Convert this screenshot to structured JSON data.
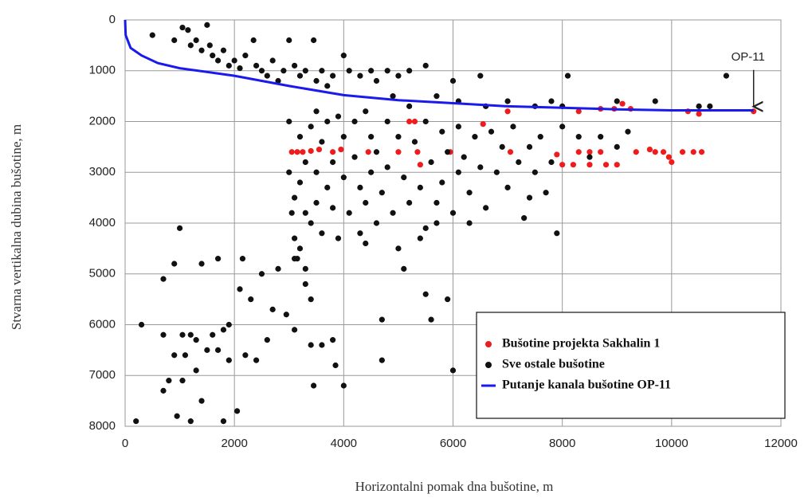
{
  "chart_data": {
    "type": "scatter",
    "xlabel": "Horizontalni pomak dna bušotine, m",
    "ylabel": "Stvarna vertikalna dubina bušotine, m",
    "xlim": [
      0,
      12000
    ],
    "xticks": [
      0,
      2000,
      4000,
      6000,
      8000,
      10000,
      12000
    ],
    "ylim": [
      8000,
      0
    ],
    "yticks": [
      0,
      1000,
      2000,
      3000,
      4000,
      5000,
      6000,
      7000,
      8000
    ],
    "grid": true,
    "legend": "lower right",
    "annotation": {
      "text": "OP-11",
      "x": 11500,
      "y": 1800
    },
    "series": [
      {
        "name": "Bušotine projekta Sakhalin 1",
        "type": "scatter",
        "color": "#ee1c1c",
        "x": [
          3050,
          3150,
          3250,
          3400,
          3550,
          3800,
          3950,
          4450,
          5000,
          5200,
          5300,
          5350,
          5400,
          5950,
          6550,
          7000,
          7050,
          7900,
          8000,
          8200,
          8300,
          8300,
          8500,
          8500,
          8700,
          8700,
          8800,
          8950,
          9000,
          9100,
          9250,
          9350,
          9600,
          9700,
          9850,
          9950,
          10000,
          10200,
          10300,
          10400,
          10500,
          10550,
          11500
        ],
        "values": [
          2600,
          2600,
          2600,
          2580,
          2550,
          2600,
          2550,
          2600,
          2600,
          2000,
          2000,
          2600,
          2850,
          2600,
          2050,
          1800,
          2600,
          2650,
          2850,
          2850,
          1800,
          2600,
          2600,
          2850,
          1750,
          2600,
          2850,
          1750,
          2850,
          1650,
          1750,
          2600,
          2550,
          2600,
          2600,
          2700,
          2800,
          2600,
          1800,
          2600,
          1850,
          2600,
          1800
        ]
      },
      {
        "name": "Sve ostale bušotine",
        "type": "scatter",
        "color": "#111111",
        "x": [
          500,
          900,
          1050,
          1150,
          1200,
          1300,
          1400,
          1500,
          1550,
          1600,
          1700,
          1800,
          1900,
          2000,
          2100,
          2200,
          2350,
          2400,
          2500,
          2600,
          2700,
          2800,
          2900,
          3000,
          3100,
          3200,
          3300,
          3450,
          3500,
          3600,
          3700,
          3800,
          4000,
          4100,
          4300,
          4500,
          4600,
          4800,
          4900,
          5000,
          5200,
          5500,
          5700,
          6000,
          6100,
          6500,
          6600,
          7000,
          7500,
          7800,
          8100,
          8000,
          9000,
          9700,
          10500,
          11000,
          10700,
          200,
          300,
          700,
          700,
          700,
          800,
          900,
          900,
          950,
          1000,
          1050,
          1050,
          1100,
          1200,
          1200,
          1300,
          1300,
          1400,
          1400,
          1500,
          1600,
          1700,
          1700,
          1800,
          1800,
          1900,
          1900,
          2050,
          2100,
          2150,
          2200,
          2300,
          2400,
          2500,
          2600,
          2700,
          2800,
          2950,
          3100,
          3150,
          3300,
          3400,
          3400,
          3450,
          3600,
          3800,
          3850,
          4000,
          4700,
          4700,
          5500,
          5600,
          5900,
          6000,
          3000,
          3000,
          3100,
          3100,
          3200,
          3200,
          3300,
          3300,
          3400,
          3400,
          3500,
          3500,
          3500,
          3600,
          3600,
          3700,
          3700,
          3800,
          3800,
          3900,
          3900,
          4000,
          4000,
          4100,
          4200,
          4200,
          4300,
          4300,
          4400,
          4400,
          4500,
          4500,
          4600,
          4600,
          4700,
          4800,
          4800,
          4900,
          5000,
          5000,
          5100,
          5100,
          5200,
          5200,
          5300,
          5400,
          5500,
          5500,
          5600,
          5700,
          5800,
          5800,
          5900,
          6000,
          6100,
          6100,
          6200,
          6300,
          6400,
          6500,
          6600,
          6700,
          6800,
          6900,
          7000,
          7100,
          7200,
          7300,
          7400,
          7500,
          7600,
          7700,
          7800,
          7900,
          8000,
          8300,
          8500,
          8700,
          9000,
          9200,
          7400,
          3100,
          3300,
          3050,
          3200,
          4400,
          5400,
          6300,
          5700
        ],
        "values": [
          300,
          400,
          150,
          200,
          500,
          400,
          600,
          100,
          500,
          700,
          800,
          600,
          900,
          800,
          950,
          700,
          400,
          900,
          1000,
          1100,
          800,
          1200,
          1000,
          400,
          900,
          1100,
          1000,
          400,
          1200,
          1000,
          1300,
          1100,
          700,
          1000,
          1100,
          1000,
          1200,
          1000,
          1500,
          1100,
          1000,
          900,
          1500,
          1200,
          1600,
          1100,
          1700,
          1600,
          1700,
          1600,
          1100,
          1700,
          1600,
          1600,
          1700,
          1100,
          1700,
          7900,
          6000,
          5100,
          6200,
          7300,
          7100,
          4800,
          6600,
          7800,
          4100,
          6200,
          7100,
          6600,
          6200,
          7900,
          6300,
          6900,
          4800,
          7500,
          6500,
          6200,
          4700,
          6500,
          6100,
          7900,
          6700,
          6000,
          7700,
          5300,
          4700,
          6600,
          5500,
          6700,
          5000,
          6300,
          5700,
          4900,
          5800,
          6100,
          4700,
          5200,
          5500,
          6400,
          7200,
          6400,
          6300,
          6800,
          7200,
          5900,
          6700,
          5400,
          5900,
          5500,
          6900,
          2000,
          3000,
          3500,
          4300,
          2300,
          3200,
          2800,
          3800,
          2100,
          4000,
          1800,
          3000,
          3600,
          2400,
          4200,
          2000,
          3300,
          2800,
          3700,
          1900,
          4300,
          2300,
          3100,
          3800,
          2000,
          2700,
          3300,
          4200,
          1800,
          3600,
          2300,
          3000,
          2600,
          4000,
          3400,
          2000,
          2900,
          3800,
          2300,
          4500,
          3100,
          4900,
          3600,
          1700,
          2400,
          3300,
          2000,
          4100,
          2800,
          3600,
          2200,
          3200,
          2600,
          3800,
          2100,
          3000,
          2700,
          3400,
          2300,
          2900,
          3700,
          2200,
          3000,
          2500,
          3300,
          2100,
          2800,
          3900,
          2500,
          3000,
          2300,
          3400,
          2800,
          4200,
          2100,
          2300,
          2700,
          2300,
          2500,
          2200,
          3500,
          4700,
          4900,
          3800,
          4500,
          4400,
          4300,
          4000,
          4000
        ]
      },
      {
        "name": "Putanje kanala bušotine OP-11",
        "type": "line",
        "color": "#1a1aee",
        "x": [
          0,
          10,
          100,
          300,
          600,
          1000,
          2000,
          3000,
          4000,
          5000,
          6000,
          7000,
          8000,
          9000,
          10000,
          11500
        ],
        "values": [
          0,
          300,
          550,
          700,
          850,
          950,
          1100,
          1300,
          1480,
          1580,
          1640,
          1700,
          1730,
          1760,
          1780,
          1780
        ]
      }
    ]
  }
}
